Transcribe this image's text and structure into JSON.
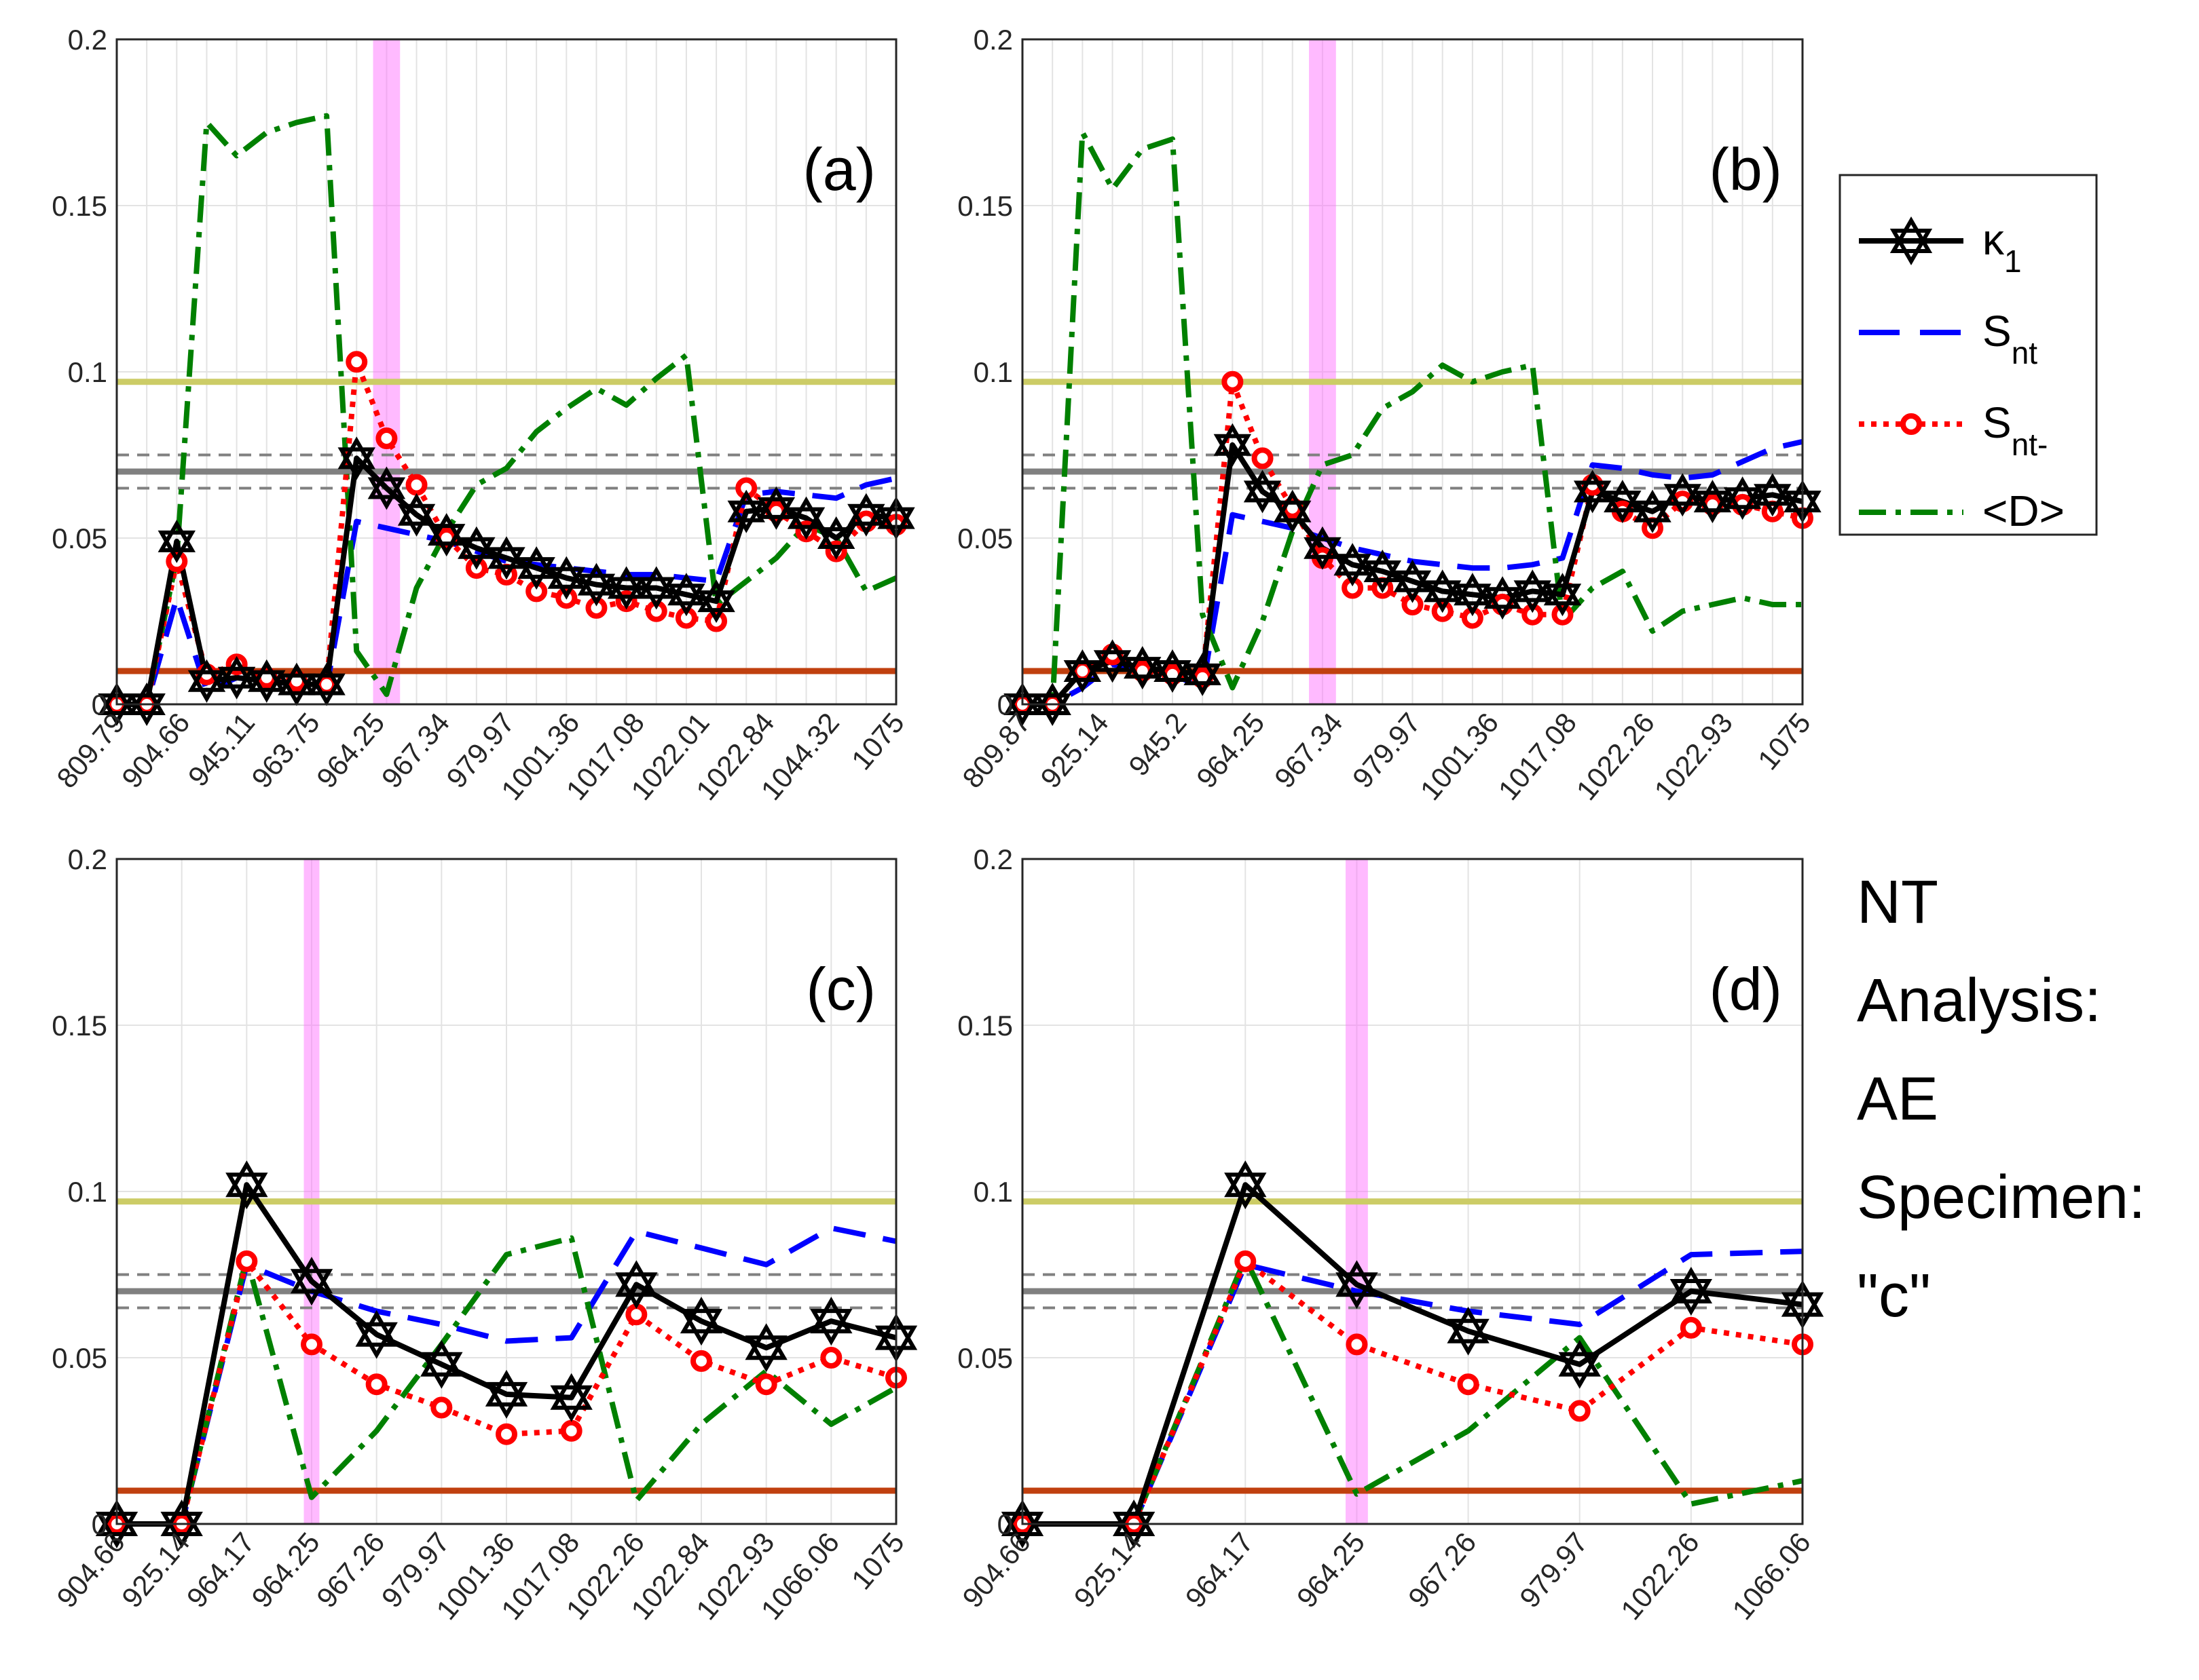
{
  "figure_caption": [
    "NT",
    "Analysis:",
    "AE",
    "Specimen:",
    "\"c\""
  ],
  "legend": [
    {
      "key": "k1",
      "label": "κ",
      "sub": "1",
      "color": "#000000"
    },
    {
      "key": "snt",
      "label": "S",
      "sub": "nt",
      "color": "#0000ff"
    },
    {
      "key": "sntm",
      "label": "S",
      "sub": "nt-",
      "color": "#ff0000"
    },
    {
      "key": "D",
      "label": "<D>",
      "sub": "",
      "color": "#008000"
    }
  ],
  "reference_lines": [
    {
      "name": "upper-threshold",
      "y": 0.097,
      "color": "#cccc66",
      "style": "solid"
    },
    {
      "name": "mean-line",
      "y": 0.07,
      "color": "#808080",
      "style": "solid"
    },
    {
      "name": "mean-plus",
      "y": 0.075,
      "color": "#808080",
      "style": "dashed"
    },
    {
      "name": "mean-minus",
      "y": 0.065,
      "color": "#808080",
      "style": "dashed"
    },
    {
      "name": "lower-threshold",
      "y": 0.01,
      "color": "#c0400f",
      "style": "solid"
    }
  ],
  "chart_data": [
    {
      "type": "line",
      "panel_label": "(a)",
      "ylim": [
        0,
        0.2
      ],
      "yticks": [
        "0",
        "0.05",
        "0.1",
        "0.15",
        "0.2"
      ],
      "n_points": 27,
      "tick_labels": [
        "809.79",
        "904.66",
        "945.11",
        "963.75",
        "964.25",
        "967.34",
        "979.97",
        "1001.36",
        "1017.08",
        "1022.01",
        "1022.84",
        "1044.32",
        "1075"
      ],
      "highlight_index": 9,
      "series": [
        {
          "key": "k1",
          "values": [
            0,
            0,
            0.049,
            0.007,
            0.008,
            0.007,
            0.006,
            0.006,
            0.074,
            0.065,
            0.057,
            0.051,
            0.047,
            0.044,
            0.041,
            0.038,
            0.036,
            0.035,
            0.035,
            0.033,
            0.031,
            0.058,
            0.059,
            0.056,
            0.05,
            0.057,
            0.056
          ]
        },
        {
          "key": "snt",
          "values": [
            0,
            0,
            0.032,
            0.004,
            0.008,
            0.007,
            0.006,
            0.005,
            0.055,
            0.053,
            0.051,
            0.049,
            0.046,
            0.043,
            0.042,
            0.041,
            0.04,
            0.039,
            0.039,
            0.038,
            0.037,
            0.063,
            0.064,
            0.063,
            0.062,
            0.066,
            0.068
          ]
        },
        {
          "key": "sntm",
          "values": [
            0,
            0,
            0.043,
            0.009,
            0.012,
            0.008,
            0.007,
            0.006,
            0.103,
            0.08,
            0.066,
            0.05,
            0.041,
            0.039,
            0.034,
            0.032,
            0.029,
            0.031,
            0.028,
            0.026,
            0.025,
            0.065,
            0.058,
            0.052,
            0.046,
            0.055,
            0.054
          ]
        },
        {
          "key": "D",
          "values": [
            0,
            0,
            0.044,
            0.175,
            0.165,
            0.172,
            0.175,
            0.177,
            0.016,
            0.003,
            0.035,
            0.052,
            0.066,
            0.071,
            0.082,
            0.089,
            0.095,
            0.09,
            0.098,
            0.105,
            0.03,
            0.037,
            0.044,
            0.054,
            0.05,
            0.034,
            0.038
          ]
        }
      ]
    },
    {
      "type": "line",
      "panel_label": "(b)",
      "ylim": [
        0,
        0.2
      ],
      "yticks": [
        "0",
        "0.05",
        "0.1",
        "0.15",
        "0.2"
      ],
      "n_points": 27,
      "tick_labels": [
        "809.87",
        "925.14",
        "945.2",
        "964.25",
        "967.34",
        "979.97",
        "1001.36",
        "1017.08",
        "1022.26",
        "1022.93",
        "1075"
      ],
      "highlight_index": 10,
      "series": [
        {
          "key": "k1",
          "values": [
            0,
            0,
            0.01,
            0.013,
            0.011,
            0.01,
            0.009,
            0.078,
            0.064,
            0.058,
            0.047,
            0.042,
            0.04,
            0.037,
            0.034,
            0.033,
            0.032,
            0.034,
            0.033,
            0.064,
            0.061,
            0.058,
            0.063,
            0.061,
            0.062,
            0.063,
            0.061
          ]
        },
        {
          "key": "snt",
          "values": [
            0,
            0,
            0.005,
            0.012,
            0.01,
            0.009,
            0.005,
            0.057,
            0.055,
            0.053,
            0.05,
            0.047,
            0.045,
            0.043,
            0.042,
            0.041,
            0.041,
            0.042,
            0.044,
            0.072,
            0.071,
            0.069,
            0.068,
            0.069,
            0.073,
            0.077,
            0.079
          ]
        },
        {
          "key": "sntm",
          "values": [
            0,
            0,
            0.01,
            0.015,
            0.01,
            0.009,
            0.008,
            0.097,
            0.074,
            0.059,
            0.044,
            0.035,
            0.035,
            0.03,
            0.028,
            0.026,
            0.03,
            0.027,
            0.027,
            0.066,
            0.058,
            0.053,
            0.061,
            0.06,
            0.06,
            0.058,
            0.056
          ]
        },
        {
          "key": "D",
          "values": [
            0,
            0,
            0.172,
            0.155,
            0.167,
            0.17,
            0.027,
            0.005,
            0.025,
            0.052,
            0.072,
            0.075,
            0.089,
            0.094,
            0.102,
            0.097,
            0.1,
            0.102,
            0.025,
            0.035,
            0.04,
            0.022,
            0.028,
            0.03,
            0.032,
            0.03,
            0.03
          ]
        }
      ]
    },
    {
      "type": "line",
      "panel_label": "(c)",
      "ylim": [
        0,
        0.2
      ],
      "yticks": [
        "0",
        "0.05",
        "0.1",
        "0.15",
        "0.2"
      ],
      "n_points": 13,
      "tick_labels": [
        "904.66",
        "925.14",
        "964.17",
        "964.25",
        "967.26",
        "979.97",
        "1001.36",
        "1017.08",
        "1022.26",
        "1022.84",
        "1022.93",
        "1066.06",
        "1075"
      ],
      "highlight_index": 3,
      "series": [
        {
          "key": "k1",
          "values": [
            0,
            0,
            0.102,
            0.073,
            0.057,
            0.048,
            0.039,
            0.038,
            0.072,
            0.061,
            0.053,
            0.061,
            0.056
          ]
        },
        {
          "key": "snt",
          "values": [
            0,
            0,
            0.078,
            0.07,
            0.064,
            0.06,
            0.055,
            0.056,
            0.088,
            0.083,
            0.078,
            0.089,
            0.085
          ]
        },
        {
          "key": "sntm",
          "values": [
            0,
            0,
            0.079,
            0.054,
            0.042,
            0.035,
            0.027,
            0.028,
            0.063,
            0.049,
            0.042,
            0.05,
            0.044
          ]
        },
        {
          "key": "D",
          "values": [
            0,
            0,
            0.08,
            0.008,
            0.028,
            0.054,
            0.081,
            0.086,
            0.007,
            0.03,
            0.046,
            0.03,
            0.041
          ]
        }
      ]
    },
    {
      "type": "line",
      "panel_label": "(d)",
      "ylim": [
        0,
        0.2
      ],
      "yticks": [
        "0",
        "0.05",
        "0.1",
        "0.15",
        "0.2"
      ],
      "n_points": 8,
      "tick_labels": [
        "904.66",
        "925.14",
        "964.17",
        "964.25",
        "967.26",
        "979.97",
        "1022.26",
        "1066.06"
      ],
      "highlight_index": 3,
      "series": [
        {
          "key": "k1",
          "values": [
            0,
            0,
            0.102,
            0.072,
            0.058,
            0.048,
            0.07,
            0.066
          ]
        },
        {
          "key": "snt",
          "values": [
            0,
            0,
            0.078,
            0.07,
            0.064,
            0.06,
            0.081,
            0.082
          ]
        },
        {
          "key": "sntm",
          "values": [
            0,
            0,
            0.079,
            0.054,
            0.042,
            0.034,
            0.059,
            0.054
          ]
        },
        {
          "key": "D",
          "values": [
            0,
            0,
            0.08,
            0.009,
            0.028,
            0.056,
            0.006,
            0.013
          ]
        }
      ]
    }
  ]
}
